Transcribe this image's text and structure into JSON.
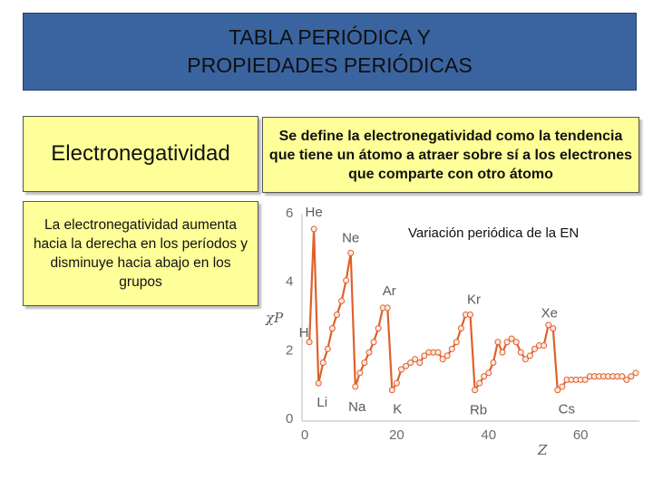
{
  "slide": {
    "title_line1": "TABLA PERIÓDICA Y",
    "title_line2": "PROPIEDADES PERIÓDICAS",
    "en_heading": "Electronegatividad",
    "definition": "Se define la electronegatividad como la tendencia que tiene un átomo a atraer sobre sí a los electrones que comparte con otro átomo",
    "trend": "La  electronegatividad aumenta hacia la derecha en los períodos y disminuye hacia abajo en los grupos",
    "chart_caption": "Variación periódica de la EN"
  },
  "colors": {
    "title_bg": "#3a64a0",
    "box_bg": "#ffff99",
    "line": "#e0602a",
    "marker_fill": "#fbe9e0"
  },
  "chart_data": {
    "type": "line",
    "title": "",
    "xlabel": "Z",
    "ylabel": "χP",
    "xlim": [
      0,
      72
    ],
    "ylim": [
      0,
      6
    ],
    "xticks": [
      0,
      20,
      40,
      60
    ],
    "yticks": [
      0,
      2,
      4,
      6
    ],
    "grid": false,
    "series": [
      {
        "points": [
          [
            1,
            2.2
          ],
          [
            2,
            5.5
          ],
          [
            3,
            1.0
          ],
          [
            4,
            1.6
          ],
          [
            5,
            2.0
          ],
          [
            6,
            2.6
          ],
          [
            7,
            3.0
          ],
          [
            8,
            3.4
          ],
          [
            9,
            4.0
          ],
          [
            10,
            4.8
          ],
          [
            11,
            0.9
          ],
          [
            12,
            1.3
          ],
          [
            13,
            1.6
          ],
          [
            14,
            1.9
          ],
          [
            15,
            2.2
          ],
          [
            16,
            2.6
          ],
          [
            17,
            3.2
          ],
          [
            18,
            3.2
          ],
          [
            19,
            0.8
          ],
          [
            20,
            1.0
          ],
          [
            21,
            1.4
          ],
          [
            22,
            1.5
          ],
          [
            23,
            1.6
          ],
          [
            24,
            1.7
          ],
          [
            25,
            1.6
          ],
          [
            26,
            1.8
          ],
          [
            27,
            1.9
          ],
          [
            28,
            1.9
          ],
          [
            29,
            1.9
          ],
          [
            30,
            1.7
          ],
          [
            31,
            1.8
          ],
          [
            32,
            2.0
          ],
          [
            33,
            2.2
          ],
          [
            34,
            2.6
          ],
          [
            35,
            3.0
          ],
          [
            36,
            3.0
          ],
          [
            37,
            0.8
          ],
          [
            38,
            1.0
          ],
          [
            39,
            1.2
          ],
          [
            40,
            1.3
          ],
          [
            41,
            1.6
          ],
          [
            42,
            2.2
          ],
          [
            43,
            1.9
          ],
          [
            44,
            2.2
          ],
          [
            45,
            2.3
          ],
          [
            46,
            2.2
          ],
          [
            47,
            1.9
          ],
          [
            48,
            1.7
          ],
          [
            49,
            1.8
          ],
          [
            50,
            2.0
          ],
          [
            51,
            2.1
          ],
          [
            52,
            2.1
          ],
          [
            53,
            2.7
          ],
          [
            54,
            2.6
          ],
          [
            55,
            0.8
          ],
          [
            56,
            0.9
          ],
          [
            57,
            1.1
          ],
          [
            58,
            1.1
          ],
          [
            59,
            1.1
          ],
          [
            60,
            1.1
          ],
          [
            61,
            1.1
          ],
          [
            62,
            1.2
          ],
          [
            63,
            1.2
          ],
          [
            64,
            1.2
          ],
          [
            65,
            1.2
          ],
          [
            66,
            1.2
          ],
          [
            67,
            1.2
          ],
          [
            68,
            1.2
          ],
          [
            69,
            1.2
          ],
          [
            70,
            1.1
          ],
          [
            71,
            1.2
          ],
          [
            72,
            1.3
          ]
        ]
      }
    ],
    "annotations": [
      {
        "label": "He",
        "x": 2,
        "y": 5.5
      },
      {
        "label": "Ne",
        "x": 10,
        "y": 4.8
      },
      {
        "label": "Ar",
        "x": 18,
        "y": 3.2
      },
      {
        "label": "Kr",
        "x": 36,
        "y": 3.0
      },
      {
        "label": "Xe",
        "x": 54,
        "y": 2.6
      },
      {
        "label": "H",
        "x": 1,
        "y": 2.2
      },
      {
        "label": "Li",
        "x": 3,
        "y": 1.0
      },
      {
        "label": "Na",
        "x": 11,
        "y": 0.9
      },
      {
        "label": "K",
        "x": 19,
        "y": 0.8
      },
      {
        "label": "Rb",
        "x": 37,
        "y": 0.8
      },
      {
        "label": "Cs",
        "x": 55,
        "y": 0.8
      }
    ]
  }
}
